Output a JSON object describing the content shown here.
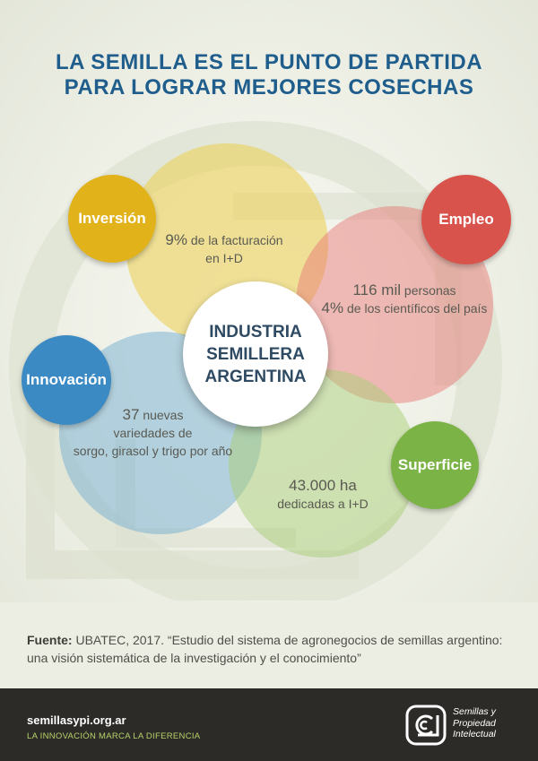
{
  "title": {
    "line1": "LA SEMILLA ES EL PUNTO DE PARTIDA",
    "line2": "PARA LOGRAR MEJORES COSECHAS"
  },
  "center": {
    "line1": "INDUSTRIA",
    "line2": "SEMILLERA",
    "line3": "ARGENTINA"
  },
  "badges": {
    "inversion": "Inversión",
    "empleo": "Empleo",
    "innovacion": "Innovación",
    "superficie": "Superficie"
  },
  "stats": {
    "inversion": {
      "value": "9%",
      "line1_rest": "de la facturación",
      "line2": "en I+D"
    },
    "empleo": {
      "value1": "116 mil",
      "rest1": "personas",
      "value2": "4%",
      "rest2": "de los científicos del país"
    },
    "innovacion": {
      "value": "37",
      "rest1": "nuevas",
      "line2": "variedades de",
      "line3": "sorgo, girasol y trigo por año"
    },
    "superficie": {
      "value": "43.000 ha",
      "line2": "dedicadas a I+D"
    }
  },
  "source": {
    "label": "Fuente:",
    "text": "UBATEC, 2017. “Estudio del sistema de agronegocios de semillas argentino: una visión sistemática de la investigación y el conocimiento”"
  },
  "footer": {
    "url": "semillasypi.org.ar",
    "tagline": "LA INNOVACIÓN MARCA LA DIFERENCIA",
    "logo_line1": "Semillas y",
    "logo_line2": "Propiedad",
    "logo_line3": "Intelectual"
  },
  "colors": {
    "title": "#1f5e8c",
    "inversion": "#e1b21a",
    "empleo": "#d9534d",
    "innovacion": "#3c8ac4",
    "superficie": "#7cb346",
    "footer_bg": "#2c2b27",
    "tagline": "#b7d26a"
  }
}
